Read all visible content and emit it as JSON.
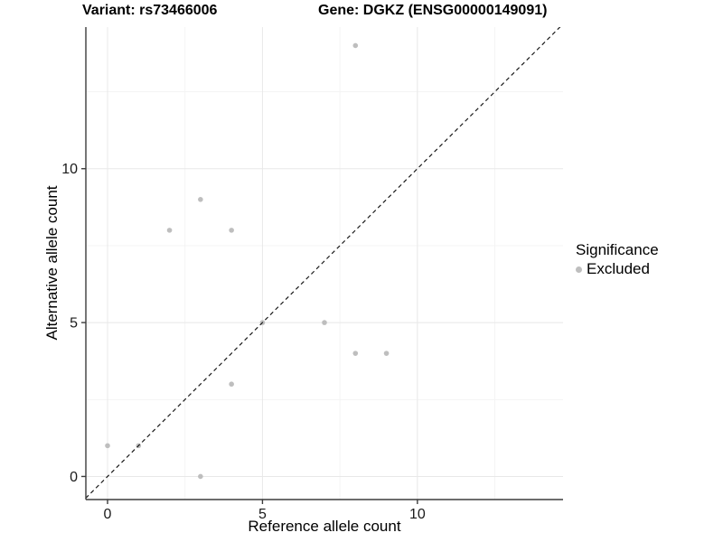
{
  "chart_data": {
    "type": "scatter",
    "titles": {
      "left": "Variant: rs73466006",
      "right": "Gene: DGKZ (ENSG00000149091)"
    },
    "xlabel": "Reference allele count",
    "ylabel": "Alternative allele count",
    "xlim": [
      -0.7,
      14.7
    ],
    "ylim": [
      -0.75,
      14.6
    ],
    "x_ticks": [
      0,
      5,
      10
    ],
    "y_ticks": [
      0,
      5,
      10
    ],
    "x_minor": [
      2.5,
      7.5,
      12.5
    ],
    "y_minor": [
      2.5,
      7.5,
      12.5
    ],
    "grid": true,
    "legend_position": "right",
    "points": [
      [
        0,
        1
      ],
      [
        1,
        1
      ],
      [
        2,
        8
      ],
      [
        3,
        0
      ],
      [
        3,
        9
      ],
      [
        4,
        3
      ],
      [
        4,
        8
      ],
      [
        5,
        5
      ],
      [
        7,
        5
      ],
      [
        8,
        4
      ],
      [
        8,
        14
      ],
      [
        9,
        4
      ]
    ],
    "identity_line": {
      "style": "dashed",
      "slope": 1,
      "intercept": 0
    },
    "colors": {
      "point": "#bebebe",
      "axis": "#3c3c3c",
      "grid_major": "#e8e8e8",
      "grid_minor": "#f3f3f3",
      "dashed_line": "#1a1a1a",
      "text": "#1a1a1a",
      "background": "#ffffff"
    },
    "legend": {
      "title": "Significance",
      "items": [
        {
          "label": "Excluded",
          "color": "#bebebe"
        }
      ]
    }
  }
}
